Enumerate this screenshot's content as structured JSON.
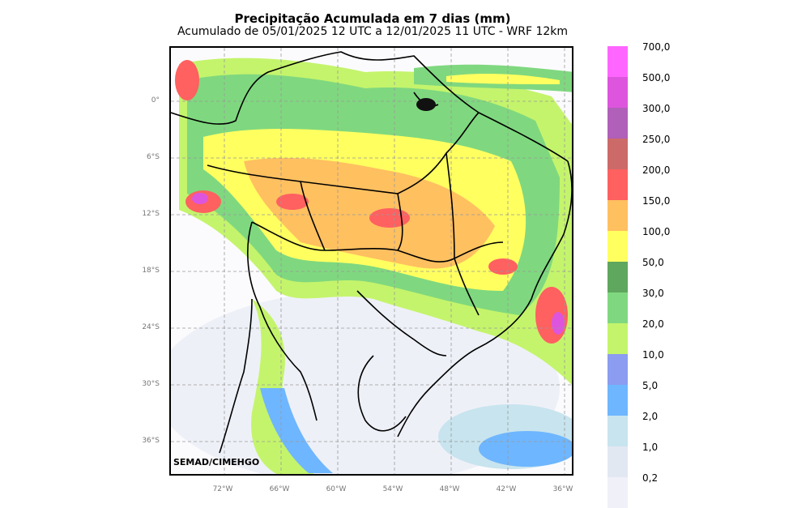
{
  "header": {
    "title": "Precipitação Acumulada em 7 dias (mm)",
    "subtitle": "Acumulado de 05/01/2025 12 UTC a 12/01/2025 11 UTC - WRF 12km"
  },
  "credit": "SEMAD/CIMEHGO",
  "latitude_labels": [
    "0°",
    "6°S",
    "12°S",
    "18°S",
    "24°S",
    "30°S",
    "36°S"
  ],
  "longitude_labels": [
    "72°W",
    "66°W",
    "60°W",
    "54°W",
    "48°W",
    "42°W",
    "36°W"
  ],
  "colorbar": {
    "levels": [
      "700,0",
      "500,0",
      "300,0",
      "250,0",
      "200,0",
      "150,0",
      "100,0",
      "50,0",
      "30,0",
      "20,0",
      "10,0",
      "5,0",
      "2,0",
      "1,0",
      "0,2"
    ],
    "colors": [
      "#ff66ff",
      "#dd55dd",
      "#b060b8",
      "#cc6a6a",
      "#ff6060",
      "#ffc060",
      "#ffff60",
      "#5fa65f",
      "#7fd87f",
      "#c4f46c",
      "#8c9cf0",
      "#6eb6ff",
      "#c8e4ee",
      "#e2e8f2",
      "#f0f0f8"
    ]
  }
}
